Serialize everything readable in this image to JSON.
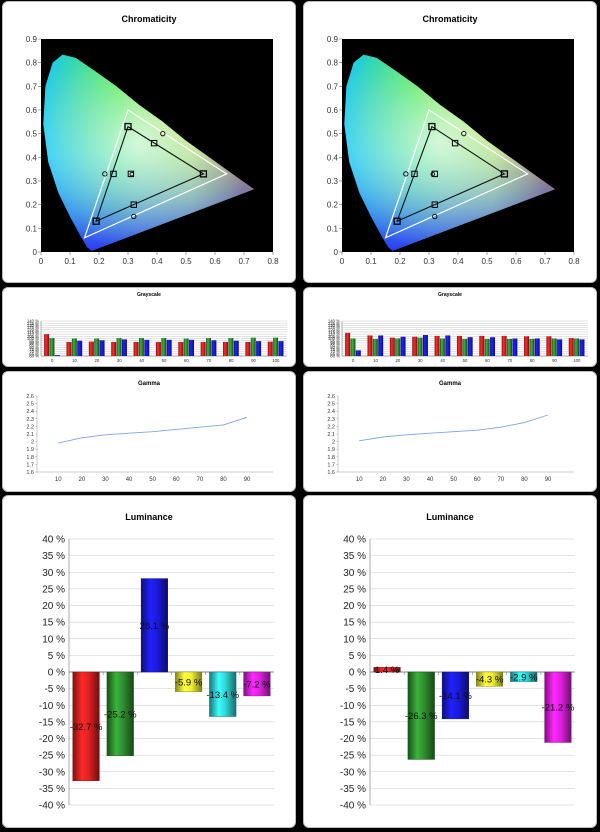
{
  "colors": {
    "red": "#e02020",
    "green": "#2f8f2f",
    "blue": "#1a1adc",
    "yellow": "#f2f230",
    "cyan": "#2fd6d6",
    "magenta": "#e020e0",
    "gamma_line": "#7da7d9"
  },
  "chart_data": [
    {
      "id": "chroma_left",
      "type": "scatter",
      "title": "Chromaticity",
      "xlim": [
        0,
        0.8
      ],
      "ylim": [
        0,
        0.9
      ],
      "xticks": [
        "0",
        "0.1",
        "0.2",
        "0.3",
        "0.4",
        "0.5",
        "0.6",
        "0.7",
        "0.8"
      ],
      "yticks": [
        "0",
        "0.1",
        "0.2",
        "0.3",
        "0.4",
        "0.5",
        "0.6",
        "0.7",
        "0.8",
        "0.9"
      ],
      "reference_triangle": [
        [
          0.64,
          0.33
        ],
        [
          0.3,
          0.6
        ],
        [
          0.15,
          0.06
        ]
      ],
      "measured_triangle": [
        [
          0.56,
          0.33
        ],
        [
          0.3,
          0.53
        ],
        [
          0.19,
          0.13
        ]
      ],
      "reference_secondary": [
        [
          0.42,
          0.5
        ],
        [
          0.22,
          0.33
        ],
        [
          0.32,
          0.15
        ]
      ],
      "measured_secondary": [
        [
          0.39,
          0.46
        ],
        [
          0.25,
          0.33
        ],
        [
          0.32,
          0.2
        ]
      ],
      "white_ref": [
        0.313,
        0.329
      ],
      "white_measured": [
        0.31,
        0.33
      ]
    },
    {
      "id": "chroma_right",
      "type": "scatter",
      "title": "Chromaticity",
      "xlim": [
        0,
        0.8
      ],
      "ylim": [
        0,
        0.9
      ],
      "xticks": [
        "0",
        "0.1",
        "0.2",
        "0.3",
        "0.4",
        "0.5",
        "0.6",
        "0.7",
        "0.8"
      ],
      "yticks": [
        "0",
        "0.1",
        "0.2",
        "0.3",
        "0.4",
        "0.5",
        "0.6",
        "0.7",
        "0.8",
        "0.9"
      ],
      "reference_triangle": [
        [
          0.64,
          0.33
        ],
        [
          0.3,
          0.6
        ],
        [
          0.15,
          0.06
        ]
      ],
      "measured_triangle": [
        [
          0.56,
          0.33
        ],
        [
          0.31,
          0.53
        ],
        [
          0.19,
          0.13
        ]
      ],
      "reference_secondary": [
        [
          0.42,
          0.5
        ],
        [
          0.22,
          0.33
        ],
        [
          0.32,
          0.15
        ]
      ],
      "measured_secondary": [
        [
          0.39,
          0.46
        ],
        [
          0.25,
          0.33
        ],
        [
          0.32,
          0.2
        ]
      ],
      "white_ref": [
        0.313,
        0.329
      ],
      "white_measured": [
        0.32,
        0.33
      ]
    },
    {
      "id": "gray_left",
      "type": "bar",
      "title": "Grayscale",
      "categories": [
        "0",
        "10",
        "20",
        "30",
        "40",
        "50",
        "60",
        "70",
        "80",
        "90",
        "100"
      ],
      "yticks": [
        "60 %",
        "65 %",
        "70 %",
        "75 %",
        "80 %",
        "85 %",
        "90 %",
        "95 %",
        "100 %",
        "105 %",
        "110 %",
        "115 %",
        "120 %",
        "125 %",
        "130 %",
        "135 %",
        "140 %"
      ],
      "ylim": [
        60,
        140
      ],
      "series": [
        {
          "color_key": "red",
          "values": [
            110,
            92,
            93,
            92,
            92,
            92,
            92,
            92,
            92,
            92,
            93
          ]
        },
        {
          "color_key": "green",
          "values": [
            101,
            100,
            100,
            101,
            101,
            101,
            100,
            101,
            101,
            102,
            102
          ]
        },
        {
          "color_key": "blue",
          "values": [
            62,
            95,
            96,
            98,
            97,
            97,
            97,
            96,
            95,
            94,
            94
          ]
        }
      ]
    },
    {
      "id": "gray_right",
      "type": "bar",
      "title": "Grayscale",
      "categories": [
        "0",
        "10",
        "20",
        "30",
        "40",
        "50",
        "60",
        "70",
        "80",
        "90",
        "100"
      ],
      "yticks": [
        "60 %",
        "65 %",
        "70 %",
        "75 %",
        "80 %",
        "85 %",
        "90 %",
        "95 %",
        "100 %",
        "105 %",
        "110 %",
        "115 %",
        "120 %",
        "125 %",
        "130 %",
        "135 %",
        "140 %"
      ],
      "ylim": [
        60,
        140
      ],
      "series": [
        {
          "color_key": "red",
          "values": [
            113,
            107,
            102,
            104,
            106,
            106,
            106,
            106,
            105,
            105,
            101
          ]
        },
        {
          "color_key": "green",
          "values": [
            100,
            99,
            100,
            102,
            100,
            99,
            99,
            99,
            99,
            100,
            100
          ]
        },
        {
          "color_key": "blue",
          "values": [
            73,
            107,
            104,
            108,
            107,
            103,
            103,
            100,
            100,
            98,
            98
          ]
        }
      ]
    },
    {
      "id": "gamma_left",
      "type": "line",
      "title": "Gamma",
      "x": [
        10,
        20,
        30,
        40,
        50,
        60,
        70,
        80,
        90
      ],
      "values": [
        1.98,
        2.05,
        2.09,
        2.11,
        2.13,
        2.16,
        2.19,
        2.22,
        2.32
      ],
      "xlim": [
        10,
        90
      ],
      "ylim": [
        1.6,
        2.6
      ],
      "xticks": [
        "10",
        "20",
        "30",
        "40",
        "50",
        "60",
        "70",
        "80",
        "90"
      ],
      "yticks": [
        "1.6",
        "1.7",
        "1.8",
        "1.9",
        "2",
        "2.1",
        "2.2",
        "2.3",
        "2.4",
        "2.5",
        "2.6"
      ]
    },
    {
      "id": "gamma_right",
      "type": "line",
      "title": "Gamma",
      "x": [
        10,
        20,
        30,
        40,
        50,
        60,
        70,
        80,
        90
      ],
      "values": [
        2.01,
        2.06,
        2.09,
        2.11,
        2.13,
        2.15,
        2.19,
        2.25,
        2.35
      ],
      "xlim": [
        10,
        90
      ],
      "ylim": [
        1.6,
        2.6
      ],
      "xticks": [
        "10",
        "20",
        "30",
        "40",
        "50",
        "60",
        "70",
        "80",
        "90"
      ],
      "yticks": [
        "1.6",
        "1.7",
        "1.8",
        "1.9",
        "2",
        "2.1",
        "2.2",
        "2.3",
        "2.4",
        "2.5",
        "2.6"
      ]
    },
    {
      "id": "lum_left",
      "type": "bar",
      "title": "Luminance",
      "ylim": [
        -40,
        40
      ],
      "yticks": [
        "-40 %",
        "-35 %",
        "-30 %",
        "-25 %",
        "-20 %",
        "-15 %",
        "-10 %",
        "-5 %",
        "0 %",
        "5 %",
        "10 %",
        "15 %",
        "20 %",
        "25 %",
        "30 %",
        "35 %",
        "40 %"
      ],
      "bars": [
        {
          "color_key": "red",
          "value": -32.7,
          "label": "-32.7 %"
        },
        {
          "color_key": "green",
          "value": -25.2,
          "label": "-25.2 %"
        },
        {
          "color_key": "blue",
          "value": 28.1,
          "label": "28.1 %"
        },
        {
          "color_key": "yellow",
          "value": -5.9,
          "label": "-5.9 %"
        },
        {
          "color_key": "cyan",
          "value": -13.4,
          "label": "-13.4 %"
        },
        {
          "color_key": "magenta",
          "value": -7.2,
          "label": "-7.2 %"
        }
      ]
    },
    {
      "id": "lum_right",
      "type": "bar",
      "title": "Luminance",
      "ylim": [
        -40,
        40
      ],
      "yticks": [
        "-40 %",
        "-35 %",
        "-30 %",
        "-25 %",
        "-20 %",
        "-15 %",
        "-10 %",
        "-5 %",
        "0 %",
        "5 %",
        "10 %",
        "15 %",
        "20 %",
        "25 %",
        "30 %",
        "35 %",
        "40 %"
      ],
      "bars": [
        {
          "color_key": "red",
          "value": 1.4,
          "label": "1.4 %"
        },
        {
          "color_key": "green",
          "value": -26.3,
          "label": "-26.3 %"
        },
        {
          "color_key": "blue",
          "value": -14.1,
          "label": "-14.1 %"
        },
        {
          "color_key": "yellow",
          "value": -4.3,
          "label": "-4.3 %"
        },
        {
          "color_key": "cyan",
          "value": -2.9,
          "label": "-2.9 %"
        },
        {
          "color_key": "magenta",
          "value": -21.2,
          "label": "-21.2 %"
        }
      ]
    }
  ]
}
